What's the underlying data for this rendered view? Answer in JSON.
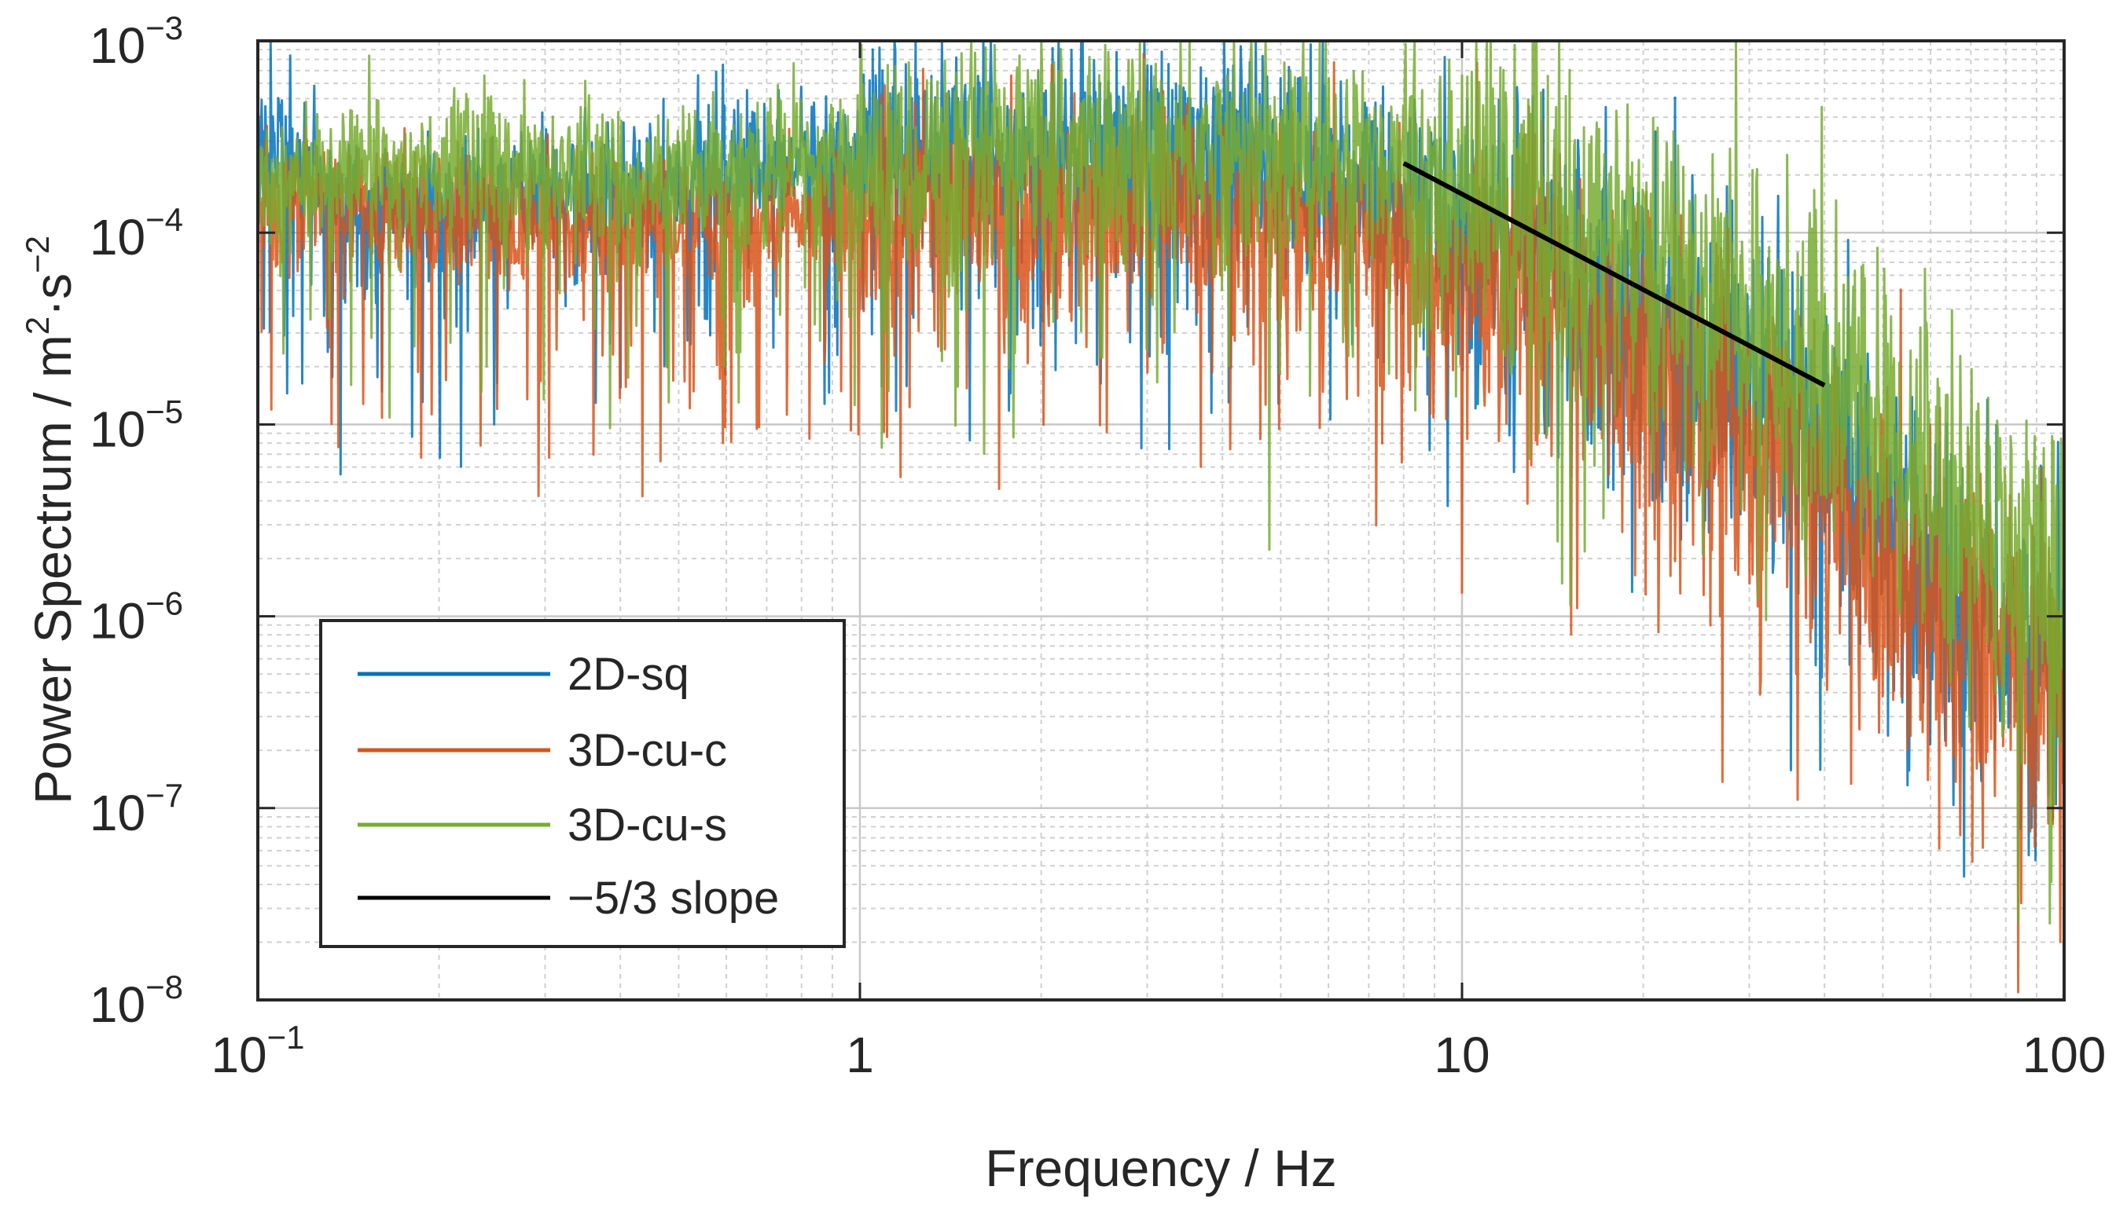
{
  "chart_data": {
    "type": "line",
    "scale": {
      "x": "log",
      "y": "log"
    },
    "xlabel": "Frequency / Hz",
    "ylabel": "Power Spectrum / m",
    "ylabel_units": {
      "sup1": "2",
      "mid": "·s",
      "sup2": "−2"
    },
    "xlim": [
      0.1,
      100
    ],
    "ylim": [
      1e-08,
      0.001
    ],
    "x_ticks": [
      {
        "value": 0.1,
        "base": "10",
        "exp": "−1"
      },
      {
        "value": 1,
        "base": "1",
        "exp": ""
      },
      {
        "value": 10,
        "base": "10",
        "exp": ""
      },
      {
        "value": 100,
        "base": "100",
        "exp": ""
      }
    ],
    "y_ticks": [
      {
        "value": 0.001,
        "base": "10",
        "exp": "−3"
      },
      {
        "value": 0.0001,
        "base": "10",
        "exp": "−4"
      },
      {
        "value": 1e-05,
        "base": "10",
        "exp": "−5"
      },
      {
        "value": 1e-06,
        "base": "10",
        "exp": "−6"
      },
      {
        "value": 1e-07,
        "base": "10",
        "exp": "−7"
      },
      {
        "value": 1e-08,
        "base": "10",
        "exp": "−8"
      }
    ],
    "grid": true,
    "minor_grid": true,
    "legend_position": "lower-left",
    "series": [
      {
        "name": "2D-sq",
        "color": "#0072BD",
        "envelope": [
          [
            0.1,
            0.00035
          ],
          [
            0.15,
            0.00012
          ],
          [
            0.3,
            0.00015
          ],
          [
            1,
            0.00025
          ],
          [
            2,
            0.00026
          ],
          [
            4,
            0.00024
          ],
          [
            8,
            0.00016
          ],
          [
            15,
            6e-05
          ],
          [
            25,
            2.2e-05
          ],
          [
            40,
            6e-06
          ],
          [
            60,
            1.5e-06
          ],
          [
            100,
            5e-07
          ]
        ]
      },
      {
        "name": "3D-cu-c",
        "color": "#D95319",
        "envelope": [
          [
            0.1,
            0.00014
          ],
          [
            0.2,
            0.00012
          ],
          [
            0.5,
            0.0001
          ],
          [
            1,
            0.00012
          ],
          [
            2,
            0.00013
          ],
          [
            4,
            0.00012
          ],
          [
            8,
            8e-05
          ],
          [
            15,
            4e-05
          ],
          [
            25,
            1.4e-05
          ],
          [
            40,
            4e-06
          ],
          [
            60,
            1.2e-06
          ],
          [
            100,
            4e-07
          ]
        ]
      },
      {
        "name": "3D-cu-s",
        "color": "#77AC30",
        "envelope": [
          [
            0.1,
            0.00016
          ],
          [
            0.15,
            0.00025
          ],
          [
            0.3,
            0.0002
          ],
          [
            1,
            0.00023
          ],
          [
            2,
            0.00025
          ],
          [
            4,
            0.00026
          ],
          [
            8,
            0.00025
          ],
          [
            15,
            0.00012
          ],
          [
            25,
            5.5e-05
          ],
          [
            40,
            1.8e-05
          ],
          [
            60,
            5e-06
          ],
          [
            100,
            1.5e-06
          ]
        ]
      }
    ],
    "reference_line": {
      "name": "−5/3 slope",
      "color": "#000000",
      "x": [
        8,
        40
      ],
      "y": [
        0.00023,
        1.6e-05
      ]
    }
  }
}
